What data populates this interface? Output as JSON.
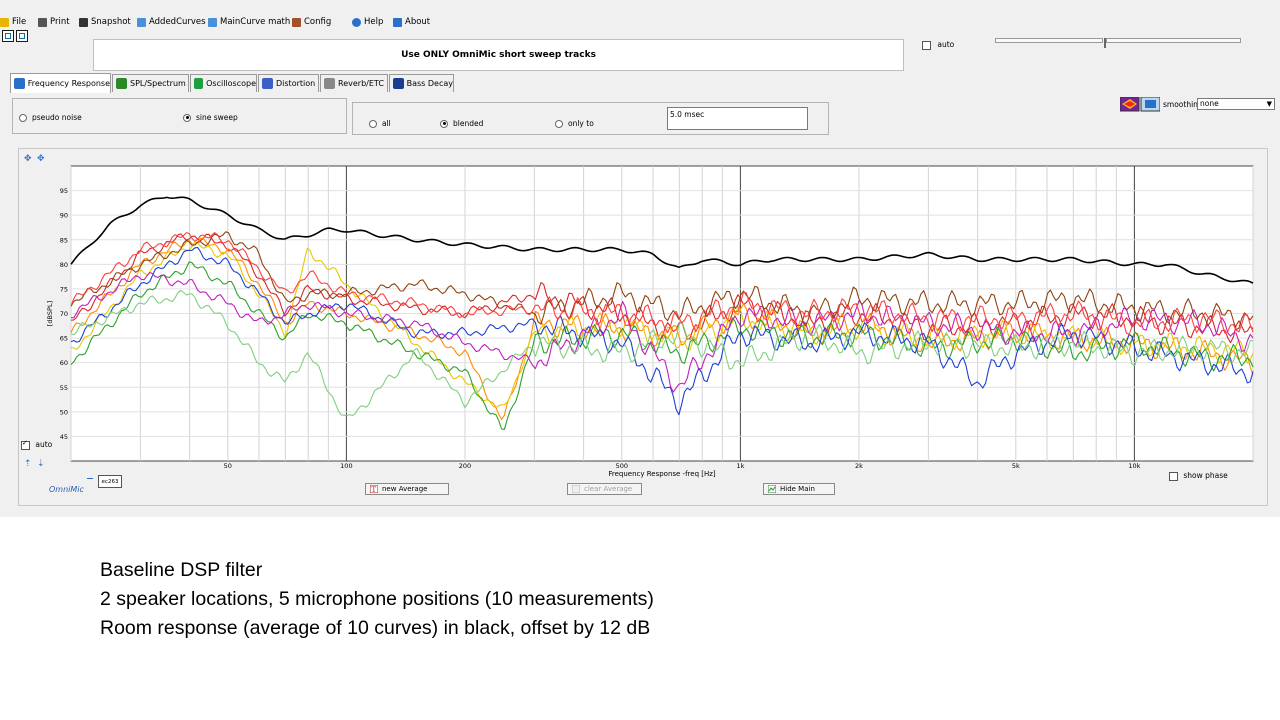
{
  "menu": {
    "items": [
      {
        "label": "File",
        "icon": "folder-icon"
      },
      {
        "label": "Print",
        "icon": "printer-icon"
      },
      {
        "label": "Snapshot",
        "icon": "camera-icon"
      },
      {
        "label": "AddedCurves",
        "icon": "added-curves-icon"
      },
      {
        "label": "MainCurve math",
        "icon": "calculator-icon"
      },
      {
        "label": "Config",
        "icon": "tools-icon"
      },
      {
        "label": "Help",
        "icon": "help-icon"
      },
      {
        "label": "About",
        "icon": "speech-bubble-icon"
      }
    ]
  },
  "banner": {
    "text": "Use ONLY OmniMic short sweep tracks"
  },
  "top_controls": {
    "auto_label": "auto",
    "auto_checked": false
  },
  "tabs": [
    {
      "label": "Frequency Response",
      "icon": "frequency-response-icon",
      "active": true
    },
    {
      "label": "SPL/Spectrum",
      "icon": "spl-spectrum-icon",
      "active": false
    },
    {
      "label": "Oscilloscope",
      "icon": "oscilloscope-icon",
      "active": false
    },
    {
      "label": "Distortion",
      "icon": "distortion-icon",
      "active": false
    },
    {
      "label": "Reverb/ETC",
      "icon": "reverb-icon",
      "active": false
    },
    {
      "label": "Bass Decay",
      "icon": "bass-decay-icon",
      "active": false
    }
  ],
  "signal_group": {
    "pseudo_noise": "pseudo noise",
    "sine_sweep": "sine sweep",
    "selected": "sine sweep"
  },
  "window_group": {
    "all": "all",
    "blended": "blended",
    "only_to": "only to",
    "selected": "blended",
    "msec_value": "5.0 msec"
  },
  "smoothing": {
    "label": "smoothing",
    "value": "none"
  },
  "plot": {
    "y_axis_label": "[dBSPL]",
    "x_axis_label": "Frequency Response -freq [Hz]",
    "y_ticks": [
      "95",
      "90",
      "85",
      "80",
      "75",
      "70",
      "65",
      "60",
      "55",
      "50",
      "45"
    ],
    "x_ticks": [
      {
        "label": "50",
        "f": 50
      },
      {
        "label": "100",
        "f": 100
      },
      {
        "label": "200",
        "f": 200
      },
      {
        "label": "500",
        "f": 500
      },
      {
        "label": "1k",
        "f": 1000
      },
      {
        "label": "2k",
        "f": 2000
      },
      {
        "label": "5k",
        "f": 5000
      },
      {
        "label": "10k",
        "f": 10000
      }
    ],
    "auto_label": "auto",
    "show_phase_label": "show phase",
    "mic_tag": "ec263",
    "logo": "OmniMic"
  },
  "buttons": {
    "new_average": "new Average",
    "clear_average": "clear Average",
    "hide_main": "Hide Main"
  },
  "caption": {
    "line1": "Baseline DSP filter",
    "line2": "2 speaker locations, 5 microphone positions (10 measurements)",
    "line3": "Room response (average of 10 curves) in black, offset by 12 dB"
  },
  "colors": {
    "average": "#000000",
    "measurements": [
      "#d62728",
      "#ff8c00",
      "#e6c800",
      "#2ca02c",
      "#1f3fd6",
      "#c020c0",
      "#8b4513",
      "#7fd07f",
      "#a0522d",
      "#ff4040"
    ]
  },
  "chart_data": {
    "type": "line",
    "xscale": "log",
    "xlim": [
      20,
      20000
    ],
    "ylim": [
      40,
      100
    ],
    "series": [
      {
        "color": "#000000",
        "x": [
          20,
          25,
          30,
          35,
          40,
          50,
          60,
          70,
          80,
          90,
          100,
          120,
          150,
          200,
          300,
          400,
          500,
          600,
          700,
          800,
          1000,
          1200,
          1500,
          2000,
          3000,
          4000,
          5000,
          7000,
          10000,
          12000,
          15000,
          20000
        ],
        "y": [
          80,
          88,
          92,
          94,
          93,
          90,
          87,
          85,
          86,
          87,
          87,
          86,
          85,
          84,
          83,
          83,
          83,
          82,
          79,
          81,
          80,
          81,
          81,
          81,
          82,
          81,
          81,
          81,
          80,
          80,
          78,
          76
        ]
      },
      {
        "color": "#d62728",
        "x": [
          20,
          30,
          40,
          50,
          60,
          70,
          80,
          100,
          150,
          200,
          300,
          500,
          700,
          1000,
          1500,
          2000,
          3000,
          5000,
          7000,
          10000,
          15000,
          20000
        ],
        "y": [
          68,
          82,
          86,
          84,
          78,
          70,
          75,
          73,
          71,
          70,
          74,
          70,
          66,
          72,
          68,
          70,
          67,
          68,
          70,
          69,
          67,
          66
        ]
      },
      {
        "color": "#ff8c00",
        "x": [
          20,
          30,
          40,
          50,
          60,
          70,
          80,
          100,
          150,
          200,
          250,
          300,
          500,
          700,
          1000,
          1500,
          2000,
          3000,
          5000,
          7000,
          10000,
          15000,
          20000
        ],
        "y": [
          66,
          80,
          85,
          83,
          76,
          68,
          72,
          70,
          66,
          62,
          48,
          68,
          67,
          65,
          70,
          66,
          68,
          64,
          66,
          65,
          64,
          62,
          60
        ]
      },
      {
        "color": "#e6c800",
        "x": [
          20,
          30,
          40,
          50,
          60,
          70,
          80,
          100,
          150,
          200,
          250,
          300,
          500,
          700,
          1000,
          1500,
          2000,
          3000,
          5000,
          7000,
          10000,
          15000,
          20000
        ],
        "y": [
          62,
          78,
          84,
          82,
          74,
          66,
          83,
          76,
          64,
          56,
          50,
          66,
          68,
          64,
          69,
          66,
          67,
          65,
          66,
          65,
          64,
          63,
          62
        ]
      },
      {
        "color": "#2ca02c",
        "x": [
          20,
          30,
          40,
          50,
          60,
          70,
          80,
          100,
          150,
          200,
          250,
          300,
          500,
          700,
          1000,
          1500,
          2000,
          3000,
          5000,
          7000,
          10000,
          15000,
          20000
        ],
        "y": [
          60,
          74,
          80,
          76,
          70,
          65,
          70,
          68,
          62,
          58,
          46,
          64,
          66,
          62,
          67,
          65,
          66,
          63,
          65,
          62,
          64,
          61,
          61
        ]
      },
      {
        "color": "#1f3fd6",
        "x": [
          20,
          30,
          40,
          50,
          60,
          70,
          80,
          100,
          150,
          200,
          300,
          500,
          700,
          1000,
          1500,
          2000,
          3000,
          4000,
          5000,
          7000,
          10000,
          15000,
          20000
        ],
        "y": [
          64,
          76,
          83,
          80,
          74,
          68,
          70,
          72,
          66,
          66,
          68,
          64,
          52,
          66,
          64,
          66,
          64,
          56,
          62,
          66,
          63,
          60,
          58
        ]
      },
      {
        "color": "#c020c0",
        "x": [
          20,
          30,
          40,
          50,
          60,
          70,
          80,
          100,
          150,
          200,
          300,
          500,
          700,
          1000,
          1500,
          2000,
          3000,
          5000,
          7000,
          10000,
          15000,
          20000
        ],
        "y": [
          70,
          78,
          76,
          72,
          68,
          70,
          72,
          70,
          68,
          64,
          60,
          70,
          55,
          70,
          68,
          70,
          68,
          66,
          66,
          69,
          68,
          64
        ]
      },
      {
        "color": "#8b4513",
        "x": [
          20,
          30,
          40,
          50,
          60,
          70,
          80,
          100,
          150,
          200,
          300,
          500,
          700,
          1000,
          1500,
          2000,
          3000,
          5000,
          7000,
          10000,
          15000,
          20000
        ],
        "y": [
          72,
          80,
          84,
          86,
          82,
          72,
          74,
          74,
          76,
          74,
          70,
          74,
          70,
          74,
          70,
          73,
          72,
          72,
          73,
          71,
          70,
          69
        ]
      },
      {
        "color": "#7fd07f",
        "x": [
          20,
          30,
          40,
          50,
          60,
          70,
          80,
          100,
          150,
          200,
          300,
          500,
          700,
          1000,
          1500,
          2000,
          3000,
          5000,
          7000,
          10000,
          15000,
          20000
        ],
        "y": [
          66,
          72,
          74,
          68,
          60,
          56,
          62,
          48,
          62,
          52,
          64,
          62,
          66,
          60,
          66,
          62,
          64,
          63,
          64,
          62,
          63,
          62
        ]
      },
      {
        "color": "#ff4040",
        "x": [
          20,
          30,
          40,
          50,
          60,
          70,
          80,
          100,
          150,
          200,
          300,
          500,
          700,
          1000,
          1500,
          2000,
          3000,
          5000,
          7000,
          10000,
          15000,
          20000
        ],
        "y": [
          72,
          83,
          86,
          85,
          79,
          74,
          78,
          74,
          72,
          70,
          71,
          70,
          68,
          72,
          70,
          71,
          69,
          69,
          70,
          68,
          69,
          67
        ]
      }
    ]
  }
}
